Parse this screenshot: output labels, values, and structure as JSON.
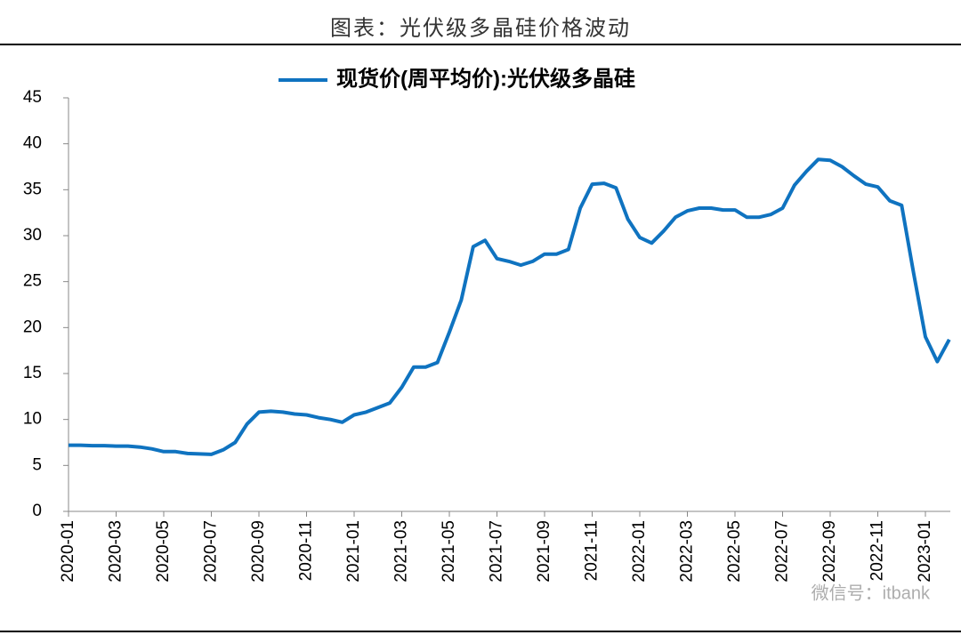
{
  "chart_data": {
    "type": "line",
    "title": "图表：光伏级多晶硅价格波动",
    "watermark": "微信号：itbank",
    "x": [
      "2020-01",
      "2020-01",
      "2020-02",
      "2020-02",
      "2020-03",
      "2020-03",
      "2020-04",
      "2020-04",
      "2020-05",
      "2020-05",
      "2020-06",
      "2020-06",
      "2020-07",
      "2020-07",
      "2020-08",
      "2020-08",
      "2020-09",
      "2020-09",
      "2020-10",
      "2020-10",
      "2020-11",
      "2020-11",
      "2020-12",
      "2020-12",
      "2021-01",
      "2021-01",
      "2021-02",
      "2021-02",
      "2021-03",
      "2021-03",
      "2021-04",
      "2021-04",
      "2021-05",
      "2021-05",
      "2021-06",
      "2021-06",
      "2021-07",
      "2021-07",
      "2021-08",
      "2021-08",
      "2021-09",
      "2021-09",
      "2021-10",
      "2021-10",
      "2021-11",
      "2021-11",
      "2021-12",
      "2021-12",
      "2022-01",
      "2022-01",
      "2022-02",
      "2022-02",
      "2022-03",
      "2022-03",
      "2022-04",
      "2022-04",
      "2022-05",
      "2022-05",
      "2022-06",
      "2022-06",
      "2022-07",
      "2022-07",
      "2022-08",
      "2022-08",
      "2022-09",
      "2022-09",
      "2022-10",
      "2022-10",
      "2022-11",
      "2022-11",
      "2022-12",
      "2022-12",
      "2023-01",
      "2023-01",
      "2023-02"
    ],
    "series": [
      {
        "name": "现货价(周平均价):光伏级多晶硅",
        "color": "#0f73c0",
        "values": [
          7.2,
          7.2,
          7.15,
          7.15,
          7.1,
          7.1,
          7.0,
          6.8,
          6.5,
          6.5,
          6.3,
          6.25,
          6.2,
          6.7,
          7.5,
          9.5,
          10.8,
          10.9,
          10.8,
          10.6,
          10.5,
          10.2,
          10.0,
          9.7,
          10.5,
          10.8,
          11.3,
          11.8,
          13.5,
          15.7,
          15.7,
          16.2,
          19.5,
          23,
          28.8,
          29.5,
          27.5,
          27.2,
          26.8,
          27.2,
          28,
          28,
          28.5,
          33,
          35.6,
          35.7,
          35.2,
          31.8,
          29.8,
          29.2,
          30.5,
          32,
          32.7,
          33,
          33,
          32.8,
          32.8,
          32,
          32,
          32.3,
          33,
          35.5,
          37,
          38.3,
          38.2,
          37.5,
          36.5,
          35.6,
          35.3,
          33.8,
          33.3,
          26,
          19,
          16.3,
          18.7
        ]
      }
    ],
    "ylim": [
      0,
      45
    ],
    "yticks": [
      0,
      5,
      10,
      15,
      20,
      25,
      30,
      35,
      40,
      45
    ],
    "xticks": [
      "2020-01",
      "2020-03",
      "2020-05",
      "2020-07",
      "2020-09",
      "2020-11",
      "2021-01",
      "2021-03",
      "2021-05",
      "2021-07",
      "2021-09",
      "2021-11",
      "2022-01",
      "2022-03",
      "2022-05",
      "2022-07",
      "2022-09",
      "2022-11",
      "2023-01"
    ],
    "grid": false
  }
}
